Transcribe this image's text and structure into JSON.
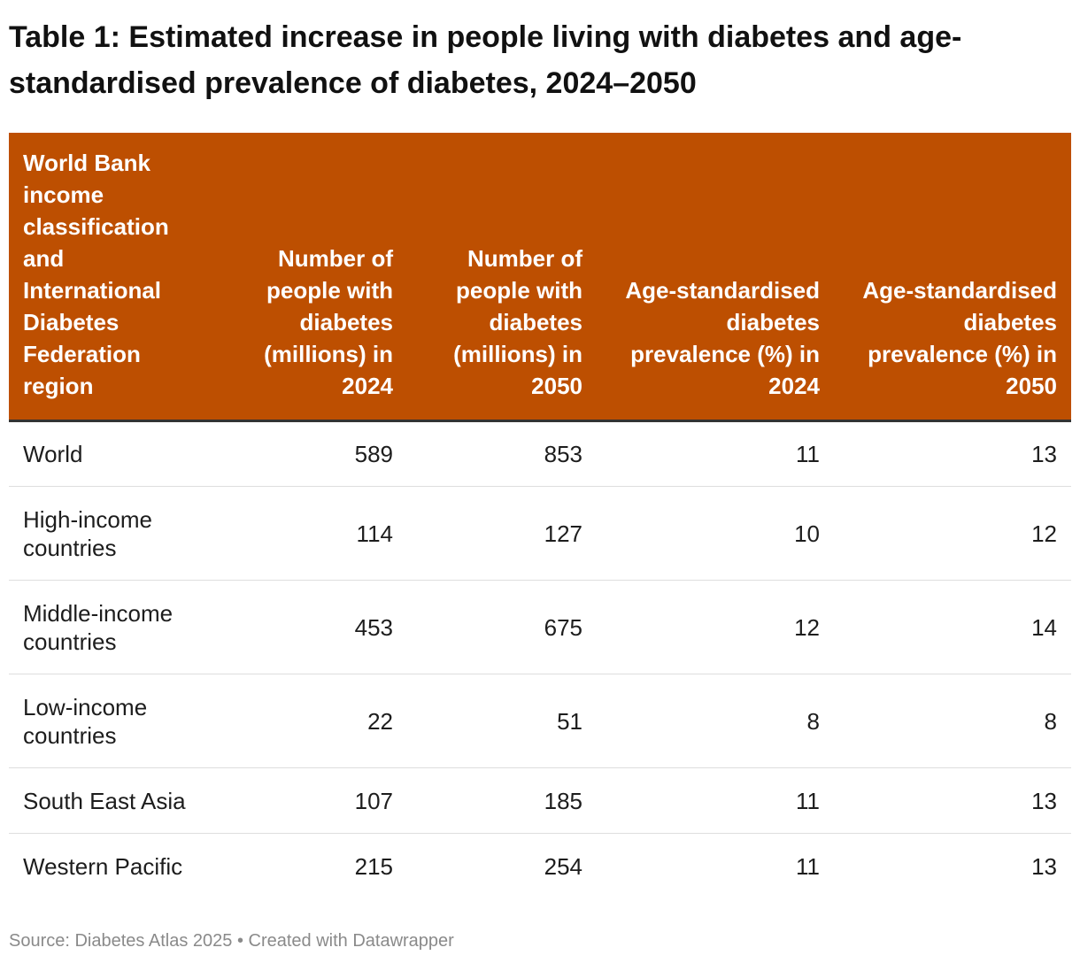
{
  "title": "Table 1: Estimated increase in people living with diabetes and age-standardised prevalence of diabetes, 2024–2050",
  "source": "Source: Diabetes Atlas 2025 • Created with Datawrapper",
  "colors": {
    "header_bg": "#bd4f01",
    "header_text": "#ffffff",
    "row_divider": "#dedede",
    "source_text": "#8a8a8a"
  },
  "chart_data": {
    "type": "table",
    "columns": [
      "World Bank income classification and International Diabetes Federation region",
      "Number of people with diabetes (millions) in 2024",
      "Number of people with diabetes (millions) in 2050",
      "Age-standardised diabetes prevalence (%) in 2024",
      "Age-standardised diabetes prevalence (%) in 2050"
    ],
    "rows": [
      [
        "World",
        "589",
        "853",
        "11",
        "13"
      ],
      [
        "High-income countries",
        "114",
        "127",
        "10",
        "12"
      ],
      [
        "Middle-income countries",
        "453",
        "675",
        "12",
        "14"
      ],
      [
        "Low-income countries",
        "22",
        "51",
        "8",
        "8"
      ],
      [
        "South East Asia",
        "107",
        "185",
        "11",
        "13"
      ],
      [
        "Western Pacific",
        "215",
        "254",
        "11",
        "13"
      ]
    ]
  }
}
